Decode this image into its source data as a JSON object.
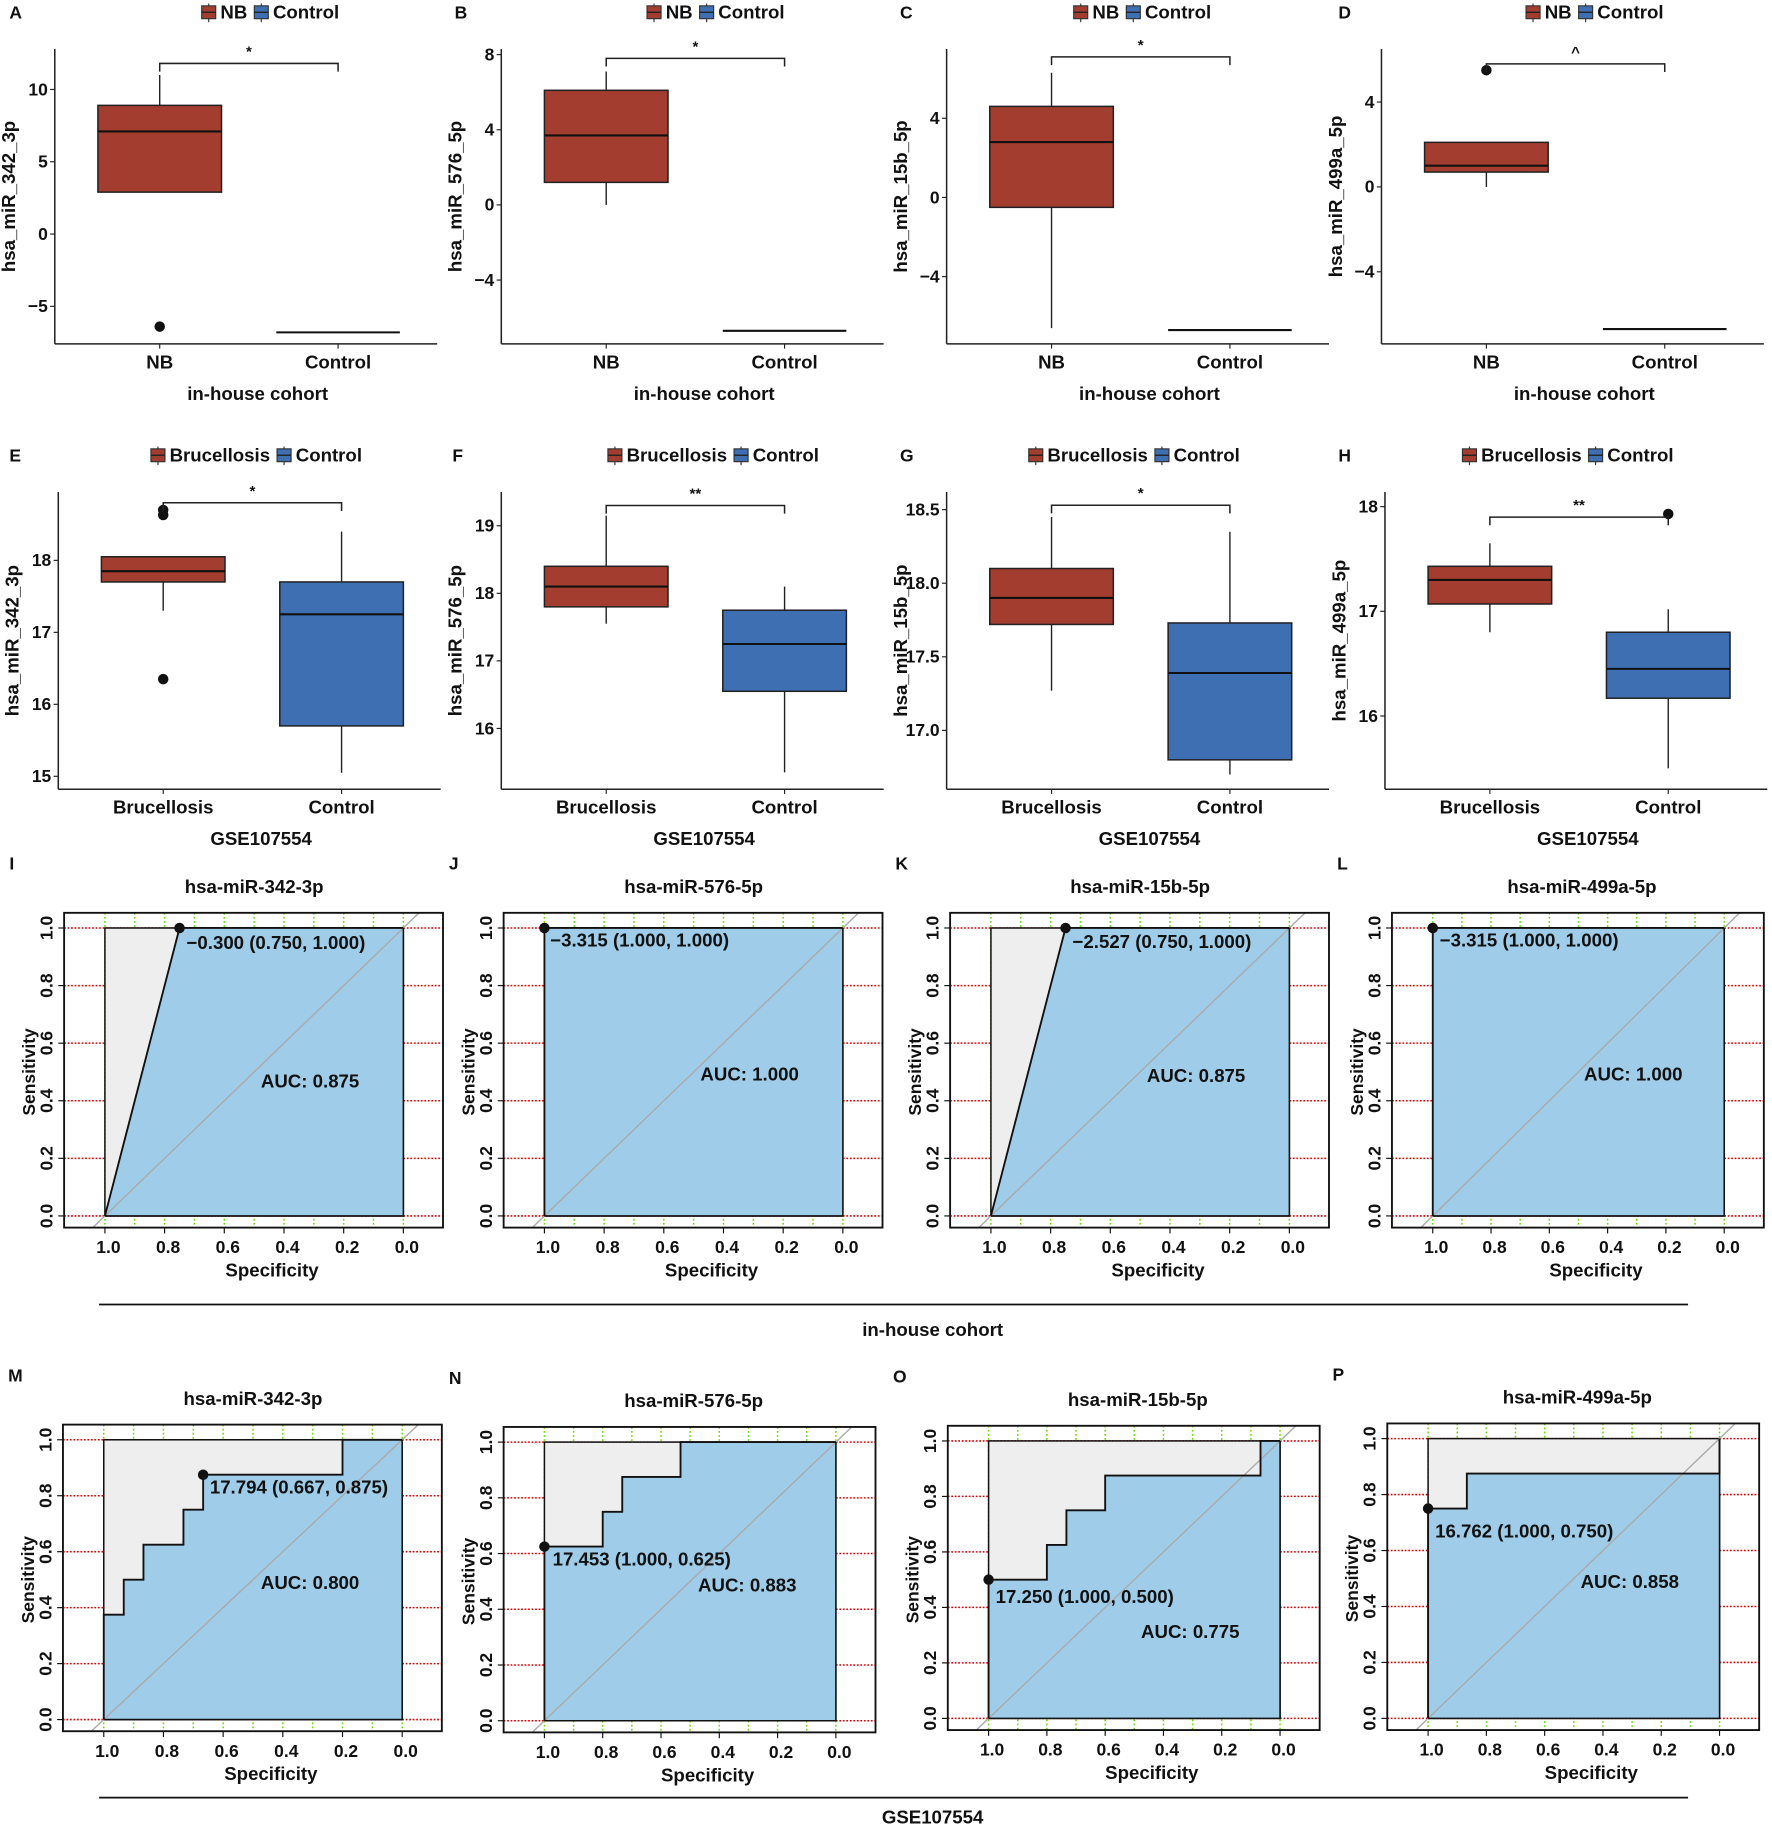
{
  "colors": {
    "case": "#A33D30",
    "control": "#3F6FB3",
    "roc_fill": "#9FCCE8",
    "roc_gray": "#EEEEEE",
    "grid_h": "#E00000",
    "grid_v": "#66DD00"
  },
  "group_labels": [
    "in-house cohort",
    "GSE107554"
  ],
  "chart_data": [
    {
      "panel": "A",
      "type": "box",
      "ylabel": "hsa_miR_342_3p",
      "xlabel": "in-house cohort",
      "categories": [
        "NB",
        "Control"
      ],
      "legend": [
        "NB",
        "Control"
      ],
      "yticks": [
        -5,
        0,
        5,
        10
      ],
      "ylim": [
        -7.6,
        12.8
      ],
      "significance": "*",
      "bracket": 11.8,
      "boxes": [
        {
          "q1": 2.9,
          "median": 7.1,
          "q3": 8.9,
          "whisker_low": 2.9,
          "whisker_high": 11.0,
          "outliers": [
            -6.4
          ]
        },
        {
          "q1": -6.8,
          "median": -6.8,
          "q3": -6.8,
          "whisker_low": -6.8,
          "whisker_high": -6.8,
          "outliers": []
        }
      ]
    },
    {
      "panel": "B",
      "type": "box",
      "ylabel": "hsa_miR_576_5p",
      "xlabel": "in-house cohort",
      "categories": [
        "NB",
        "Control"
      ],
      "legend": [
        "NB",
        "Control"
      ],
      "yticks": [
        -4,
        0,
        4,
        8
      ],
      "ylim": [
        -7.4,
        8.3
      ],
      "significance": "*",
      "bracket": 7.8,
      "boxes": [
        {
          "q1": 1.2,
          "median": 3.7,
          "q3": 6.1,
          "whisker_low": 0.0,
          "whisker_high": 7.1,
          "outliers": []
        },
        {
          "q1": -6.7,
          "median": -6.7,
          "q3": -6.7,
          "whisker_low": -6.7,
          "whisker_high": -6.7,
          "outliers": []
        }
      ]
    },
    {
      "panel": "C",
      "type": "box",
      "ylabel": "hsa_miR_15b_5p",
      "xlabel": "in-house cohort",
      "categories": [
        "NB",
        "Control"
      ],
      "legend": [
        "NB",
        "Control"
      ],
      "yticks": [
        -4,
        0,
        4
      ],
      "ylim": [
        -7.4,
        7.5
      ],
      "significance": "*",
      "bracket": 7.1,
      "boxes": [
        {
          "q1": -0.5,
          "median": 2.8,
          "q3": 4.6,
          "whisker_low": -6.6,
          "whisker_high": 6.3,
          "outliers": []
        },
        {
          "q1": -6.7,
          "median": -6.7,
          "q3": -6.7,
          "whisker_low": -6.7,
          "whisker_high": -6.7,
          "outliers": []
        }
      ]
    },
    {
      "panel": "D",
      "type": "box",
      "ylabel": "hsa_miR_499a_5p",
      "xlabel": "in-house cohort",
      "categories": [
        "NB",
        "Control"
      ],
      "legend": [
        "NB",
        "Control"
      ],
      "yticks": [
        -4,
        0,
        4
      ],
      "ylim": [
        -7.4,
        6.5
      ],
      "significance": "^",
      "bracket": 5.8,
      "boxes": [
        {
          "q1": 0.7,
          "median": 1.0,
          "q3": 2.1,
          "whisker_low": 0.0,
          "whisker_high": 2.1,
          "outliers": [
            5.5
          ]
        },
        {
          "q1": -6.7,
          "median": -6.7,
          "q3": -6.7,
          "whisker_low": -6.7,
          "whisker_high": -6.7,
          "outliers": []
        }
      ]
    },
    {
      "panel": "E",
      "type": "box",
      "ylabel": "hsa_miR_342_3p",
      "xlabel": "GSE107554",
      "categories": [
        "Brucellosis",
        "Control"
      ],
      "legend": [
        "Brucellosis",
        "Control"
      ],
      "yticks": [
        15,
        16,
        17,
        18
      ],
      "ylim": [
        14.82,
        18.95
      ],
      "significance": "*",
      "bracket": 18.8,
      "boxes": [
        {
          "q1": 17.7,
          "median": 17.85,
          "q3": 18.05,
          "whisker_low": 17.3,
          "whisker_high": 18.05,
          "outliers": [
            18.7,
            18.63,
            16.35
          ]
        },
        {
          "q1": 15.7,
          "median": 17.25,
          "q3": 17.7,
          "whisker_low": 15.05,
          "whisker_high": 18.4,
          "outliers": []
        }
      ]
    },
    {
      "panel": "F",
      "type": "box",
      "ylabel": "hsa_miR_576_5p",
      "xlabel": "GSE107554",
      "categories": [
        "Brucellosis",
        "Control"
      ],
      "legend": [
        "Brucellosis",
        "Control"
      ],
      "yticks": [
        16,
        17,
        18,
        19
      ],
      "ylim": [
        15.1,
        19.5
      ],
      "significance": "**",
      "bracket": 19.3,
      "boxes": [
        {
          "q1": 17.8,
          "median": 18.1,
          "q3": 18.4,
          "whisker_low": 17.55,
          "whisker_high": 19.15,
          "outliers": []
        },
        {
          "q1": 16.55,
          "median": 17.25,
          "q3": 17.75,
          "whisker_low": 15.35,
          "whisker_high": 18.1,
          "outliers": []
        }
      ]
    },
    {
      "panel": "G",
      "type": "box",
      "ylabel": "hsa_miR_15b_5p",
      "xlabel": "GSE107554",
      "categories": [
        "Brucellosis",
        "Control"
      ],
      "legend": [
        "Brucellosis",
        "Control"
      ],
      "yticks": [
        17.0,
        17.5,
        18.0,
        18.5
      ],
      "ylim": [
        16.6,
        18.62
      ],
      "significance": "*",
      "bracket": 18.53,
      "boxes": [
        {
          "q1": 17.72,
          "median": 17.9,
          "q3": 18.1,
          "whisker_low": 17.27,
          "whisker_high": 18.45,
          "outliers": []
        },
        {
          "q1": 16.8,
          "median": 17.39,
          "q3": 17.73,
          "whisker_low": 16.7,
          "whisker_high": 18.35,
          "outliers": []
        }
      ]
    },
    {
      "panel": "H",
      "type": "box",
      "ylabel": "hsa_miR_499a_5p",
      "xlabel": "GSE107554",
      "categories": [
        "Brucellosis",
        "Control"
      ],
      "legend": [
        "Brucellosis",
        "Control"
      ],
      "yticks": [
        16,
        17,
        18
      ],
      "ylim": [
        15.3,
        18.14
      ],
      "significance": "**",
      "bracket": 17.9,
      "boxes": [
        {
          "q1": 17.07,
          "median": 17.3,
          "q3": 17.43,
          "whisker_low": 16.8,
          "whisker_high": 17.65,
          "outliers": []
        },
        {
          "q1": 16.17,
          "median": 16.45,
          "q3": 16.8,
          "whisker_low": 15.5,
          "whisker_high": 17.02,
          "outliers": [
            17.93
          ]
        }
      ]
    },
    {
      "panel": "I",
      "type": "roc",
      "title": "hsa-miR-342-3p",
      "xlabel": "Specificity",
      "ylabel": "Sensitivity",
      "xticks": [
        "1.0",
        "0.8",
        "0.6",
        "0.4",
        "0.2",
        "0.0"
      ],
      "yticks": [
        "0.0",
        "0.2",
        "0.4",
        "0.6",
        "0.8",
        "1.0"
      ],
      "auc_label": "AUC: 0.875",
      "threshold_label": "−0.300 (0.750, 1.000)",
      "point": [
        0.75,
        1.0
      ],
      "curve": [
        [
          1,
          0
        ],
        [
          0.75,
          1
        ],
        [
          0,
          1
        ]
      ]
    },
    {
      "panel": "J",
      "type": "roc",
      "title": "hsa-miR-576-5p",
      "xlabel": "Specificity",
      "ylabel": "Sensitivity",
      "xticks": [
        "1.0",
        "0.8",
        "0.6",
        "0.4",
        "0.2",
        "0.0"
      ],
      "yticks": [
        "0.0",
        "0.2",
        "0.4",
        "0.6",
        "0.8",
        "1.0"
      ],
      "auc_label": "AUC: 1.000",
      "threshold_label": "−3.315 (1.000, 1.000)",
      "point": [
        1.0,
        1.0
      ],
      "curve": [
        [
          1,
          0
        ],
        [
          1,
          1
        ],
        [
          0,
          1
        ]
      ]
    },
    {
      "panel": "K",
      "type": "roc",
      "title": "hsa-miR-15b-5p",
      "xlabel": "Specificity",
      "ylabel": "Sensitivity",
      "xticks": [
        "1.0",
        "0.8",
        "0.6",
        "0.4",
        "0.2",
        "0.0"
      ],
      "yticks": [
        "0.0",
        "0.2",
        "0.4",
        "0.6",
        "0.8",
        "1.0"
      ],
      "auc_label": "AUC: 0.875",
      "threshold_label": "−2.527 (0.750, 1.000)",
      "point": [
        0.75,
        1.0
      ],
      "curve": [
        [
          1,
          0
        ],
        [
          0.75,
          1
        ],
        [
          0,
          1
        ]
      ]
    },
    {
      "panel": "L",
      "type": "roc",
      "title": "hsa-miR-499a-5p",
      "xlabel": "Specificity",
      "ylabel": "Sensitivity",
      "xticks": [
        "1.0",
        "0.8",
        "0.6",
        "0.4",
        "0.2",
        "0.0"
      ],
      "yticks": [
        "0.0",
        "0.2",
        "0.4",
        "0.6",
        "0.8",
        "1.0"
      ],
      "auc_label": "AUC: 1.000",
      "threshold_label": "−3.315 (1.000, 1.000)",
      "point": [
        1.0,
        1.0
      ],
      "curve": [
        [
          1,
          0
        ],
        [
          1,
          1
        ],
        [
          0,
          1
        ]
      ]
    },
    {
      "panel": "M",
      "type": "roc",
      "title": "hsa-miR-342-3p",
      "xlabel": "Specificity",
      "ylabel": "Sensitivity",
      "xticks": [
        "1.0",
        "0.8",
        "0.6",
        "0.4",
        "0.2",
        "0.0"
      ],
      "yticks": [
        "0.0",
        "0.2",
        "0.4",
        "0.6",
        "0.8",
        "1.0"
      ],
      "auc_label": "AUC: 0.800",
      "threshold_label": "17.794 (0.667, 0.875)",
      "point": [
        0.667,
        0.875
      ],
      "curve": [
        [
          1,
          0
        ],
        [
          1,
          0.375
        ],
        [
          0.933,
          0.375
        ],
        [
          0.933,
          0.5
        ],
        [
          0.867,
          0.5
        ],
        [
          0.867,
          0.625
        ],
        [
          0.733,
          0.625
        ],
        [
          0.733,
          0.75
        ],
        [
          0.667,
          0.75
        ],
        [
          0.667,
          0.875
        ],
        [
          0.2,
          0.875
        ],
        [
          0.2,
          1
        ],
        [
          0,
          1
        ]
      ]
    },
    {
      "panel": "N",
      "type": "roc",
      "title": "hsa-miR-576-5p",
      "xlabel": "Specificity",
      "ylabel": "Sensitivity",
      "xticks": [
        "1.0",
        "0.8",
        "0.6",
        "0.4",
        "0.2",
        "0.0"
      ],
      "yticks": [
        "0.0",
        "0.2",
        "0.4",
        "0.6",
        "0.8",
        "1.0"
      ],
      "auc_label": "AUC: 0.883",
      "threshold_label": "17.453 (1.000, 0.625)",
      "point": [
        1.0,
        0.625
      ],
      "curve": [
        [
          1,
          0
        ],
        [
          1,
          0.625
        ],
        [
          0.8,
          0.625
        ],
        [
          0.8,
          0.75
        ],
        [
          0.733,
          0.75
        ],
        [
          0.733,
          0.875
        ],
        [
          0.533,
          0.875
        ],
        [
          0.533,
          1
        ],
        [
          0,
          1
        ]
      ]
    },
    {
      "panel": "O",
      "type": "roc",
      "title": "hsa-miR-15b-5p",
      "xlabel": "Specificity",
      "ylabel": "Sensitivity",
      "xticks": [
        "1.0",
        "0.8",
        "0.6",
        "0.4",
        "0.2",
        "0.0"
      ],
      "yticks": [
        "0.0",
        "0.2",
        "0.4",
        "0.6",
        "0.8",
        "1.0"
      ],
      "auc_label": "AUC: 0.775",
      "threshold_label": "17.250 (1.000, 0.500)",
      "point": [
        1.0,
        0.5
      ],
      "curve": [
        [
          1,
          0
        ],
        [
          1,
          0.5
        ],
        [
          0.8,
          0.5
        ],
        [
          0.8,
          0.625
        ],
        [
          0.733,
          0.625
        ],
        [
          0.733,
          0.75
        ],
        [
          0.6,
          0.75
        ],
        [
          0.6,
          0.875
        ],
        [
          0.067,
          0.875
        ],
        [
          0.067,
          1
        ],
        [
          0,
          1
        ]
      ]
    },
    {
      "panel": "P",
      "type": "roc",
      "title": "hsa-miR-499a-5p",
      "xlabel": "Specificity",
      "ylabel": "Sensitivity",
      "xticks": [
        "1.0",
        "0.8",
        "0.6",
        "0.4",
        "0.2",
        "0.0"
      ],
      "yticks": [
        "0.0",
        "0.2",
        "0.4",
        "0.6",
        "0.8",
        "1.0"
      ],
      "auc_label": "AUC: 0.858",
      "threshold_label": "16.762 (1.000, 0.750)",
      "point": [
        1.0,
        0.75
      ],
      "curve": [
        [
          1,
          0
        ],
        [
          1,
          0.75
        ],
        [
          0.867,
          0.75
        ],
        [
          0.867,
          0.875
        ],
        [
          0,
          0.875
        ],
        [
          0,
          1
        ]
      ]
    }
  ]
}
